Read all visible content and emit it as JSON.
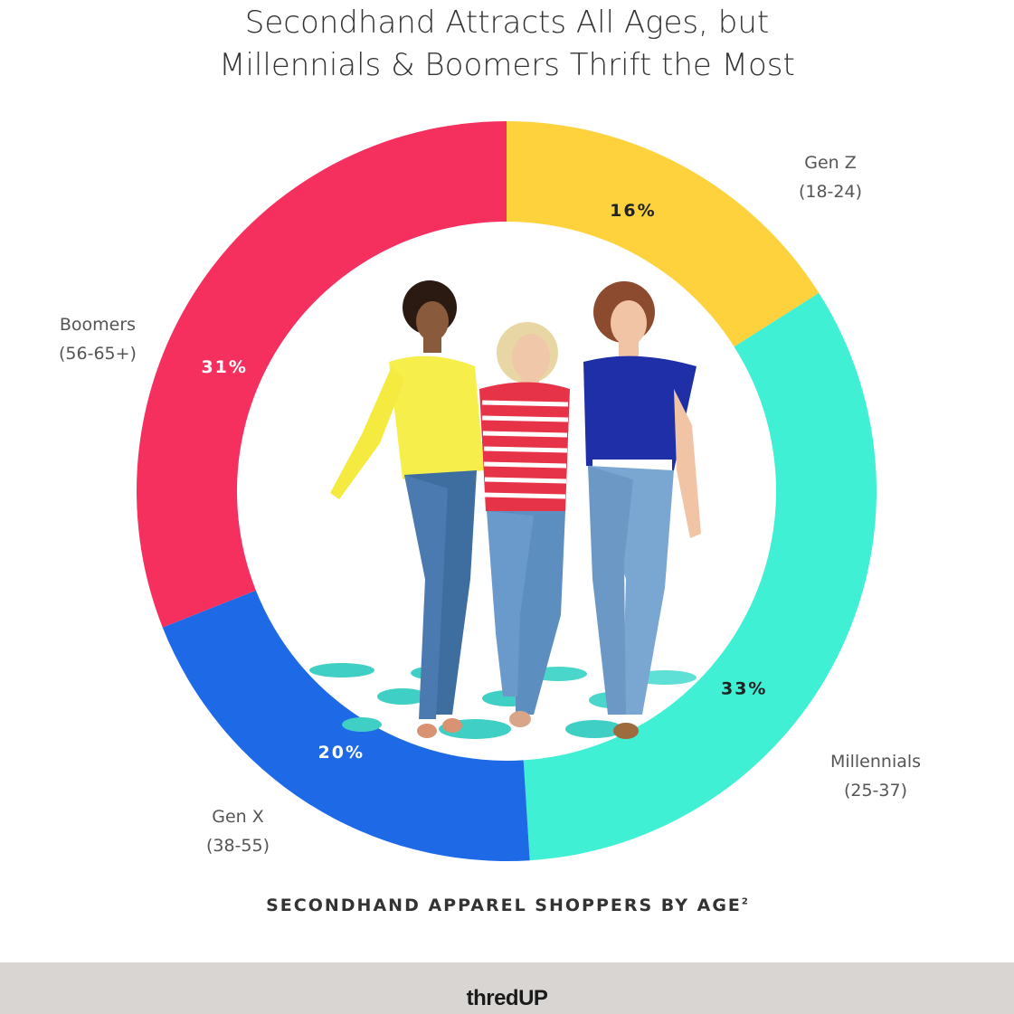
{
  "title": {
    "line1": "Secondhand Attracts All Ages, but",
    "line2": "Millennials & Boomers Thrift the Most"
  },
  "chart_data": {
    "type": "pie",
    "subtype": "donut",
    "title": "Secondhand Attracts All Ages, but Millennials & Boomers Thrift the Most",
    "caption": "SECONDHAND APPAREL SHOPPERS BY AGE",
    "caption_superscript": "2",
    "slices": [
      {
        "name": "Gen Z",
        "range": "(18-24)",
        "value": 16,
        "label": "16%",
        "color": "#fdd23c"
      },
      {
        "name": "Millennials",
        "range": "(25-37)",
        "value": 33,
        "label": "33%",
        "color": "#3ff0d4"
      },
      {
        "name": "Gen X",
        "range": "(38-55)",
        "value": 20,
        "label": "20%",
        "color": "#1e6ae6"
      },
      {
        "name": "Boomers",
        "range": "(56-65+)",
        "value": 31,
        "label": "31%",
        "color": "#f5305e"
      }
    ],
    "center_image": "photo of three women walking in jeans (yellow, striped red, blue tops)"
  },
  "footer": {
    "brand": "thredUP",
    "background": "#d8d5d3"
  }
}
